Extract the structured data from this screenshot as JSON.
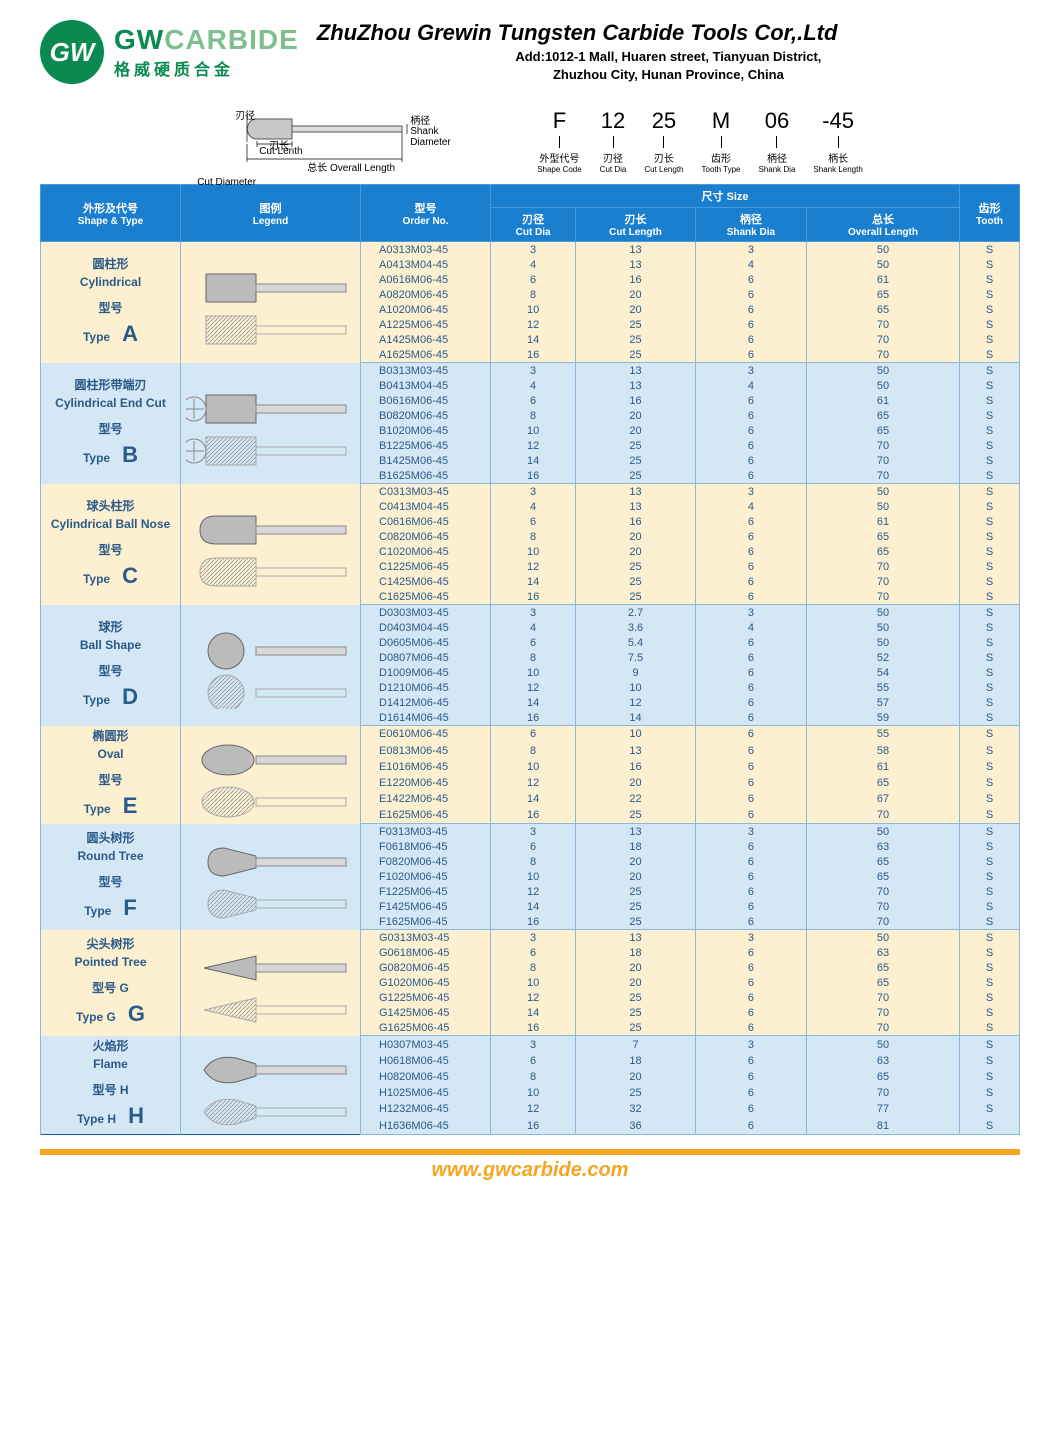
{
  "header": {
    "logo_text": "GW",
    "brand_en_1": "GW",
    "brand_en_2": "CARBIDE",
    "brand_cn": "格威硬质合金",
    "company_name": "ZhuZhou Grewin Tungsten Carbide Tools Cor,.Ltd",
    "addr1": "Add:1012-1 Mall, Huaren street, Tianyuan District,",
    "addr2": "Zhuzhou City, Hunan Province, China"
  },
  "diagram": {
    "cut_dia_cn": "刃径",
    "cut_dia_en": "Cut Diameter",
    "cut_len_cn": "刃长",
    "cut_len_en": "Cut Lenth",
    "overall_cn": "总长",
    "overall_en": "Overall Length",
    "shank_cn": "柄径",
    "shank_en": "Shank Diameter"
  },
  "code_spec": [
    {
      "big": "F",
      "cn": "外型代号",
      "en": "Shape Code"
    },
    {
      "big": "12",
      "cn": "刃径",
      "en": "Cut Dia"
    },
    {
      "big": "25",
      "cn": "刃长",
      "en": "Cut Length"
    },
    {
      "big": "M",
      "cn": "齿形",
      "en": "Tooth Type"
    },
    {
      "big": "06",
      "cn": "柄径",
      "en": "Shank Dia"
    },
    {
      "big": "-45",
      "cn": "柄长",
      "en": "Shank Length"
    }
  ],
  "table_headers": {
    "shape_cn": "外形及代号",
    "shape_en": "Shape & Type",
    "legend_cn": "图例",
    "legend_en": "Legend",
    "order_cn": "型号",
    "order_en": "Order No.",
    "size_cn": "尺寸",
    "size_en": "Size",
    "cutdia_cn": "刃径",
    "cutdia_en": "Cut Dia",
    "cutlen_cn": "刃长",
    "cutlen_en": "Cut Length",
    "shankdia_cn": "柄径",
    "shankdia_en": "Shank Dia",
    "overall_cn": "总长",
    "overall_en": "Overall Length",
    "tooth_cn": "齿形",
    "tooth_en": "Tooth"
  },
  "groups": [
    {
      "cn": "圆柱形",
      "en": "Cylindrical",
      "type_cn": "型号",
      "type_en": "Type",
      "letter": "A",
      "svg": "cyl",
      "rows": [
        {
          "o": "A0313M03-45",
          "d": "3",
          "l": "13",
          "s": "3",
          "ov": "50",
          "t": "S"
        },
        {
          "o": "A0413M04-45",
          "d": "4",
          "l": "13",
          "s": "4",
          "ov": "50",
          "t": "S"
        },
        {
          "o": "A0616M06-45",
          "d": "6",
          "l": "16",
          "s": "6",
          "ov": "61",
          "t": "S"
        },
        {
          "o": "A0820M06-45",
          "d": "8",
          "l": "20",
          "s": "6",
          "ov": "65",
          "t": "S"
        },
        {
          "o": "A1020M06-45",
          "d": "10",
          "l": "20",
          "s": "6",
          "ov": "65",
          "t": "S"
        },
        {
          "o": "A1225M06-45",
          "d": "12",
          "l": "25",
          "s": "6",
          "ov": "70",
          "t": "S"
        },
        {
          "o": "A1425M06-45",
          "d": "14",
          "l": "25",
          "s": "6",
          "ov": "70",
          "t": "S"
        },
        {
          "o": "A1625M06-45",
          "d": "16",
          "l": "25",
          "s": "6",
          "ov": "70",
          "t": "S"
        }
      ]
    },
    {
      "cn": "圆柱形带端刃",
      "en": "Cylindrical End Cut",
      "type_cn": "型号",
      "type_en": "Type",
      "letter": "B",
      "svg": "cylend",
      "rows": [
        {
          "o": "B0313M03-45",
          "d": "3",
          "l": "13",
          "s": "3",
          "ov": "50",
          "t": "S"
        },
        {
          "o": "B0413M04-45",
          "d": "4",
          "l": "13",
          "s": "4",
          "ov": "50",
          "t": "S"
        },
        {
          "o": "B0616M06-45",
          "d": "6",
          "l": "16",
          "s": "6",
          "ov": "61",
          "t": "S"
        },
        {
          "o": "B0820M06-45",
          "d": "8",
          "l": "20",
          "s": "6",
          "ov": "65",
          "t": "S"
        },
        {
          "o": "B1020M06-45",
          "d": "10",
          "l": "20",
          "s": "6",
          "ov": "65",
          "t": "S"
        },
        {
          "o": "B1225M06-45",
          "d": "12",
          "l": "25",
          "s": "6",
          "ov": "70",
          "t": "S"
        },
        {
          "o": "B1425M06-45",
          "d": "14",
          "l": "25",
          "s": "6",
          "ov": "70",
          "t": "S"
        },
        {
          "o": "B1625M06-45",
          "d": "16",
          "l": "25",
          "s": "6",
          "ov": "70",
          "t": "S"
        }
      ]
    },
    {
      "cn": "球头柱形",
      "en": "Cylindrical Ball Nose",
      "type_cn": "型号",
      "type_en": "Type",
      "letter": "C",
      "svg": "ballnose",
      "rows": [
        {
          "o": "C0313M03-45",
          "d": "3",
          "l": "13",
          "s": "3",
          "ov": "50",
          "t": "S"
        },
        {
          "o": "C0413M04-45",
          "d": "4",
          "l": "13",
          "s": "4",
          "ov": "50",
          "t": "S"
        },
        {
          "o": "C0616M06-45",
          "d": "6",
          "l": "16",
          "s": "6",
          "ov": "61",
          "t": "S"
        },
        {
          "o": "C0820M06-45",
          "d": "8",
          "l": "20",
          "s": "6",
          "ov": "65",
          "t": "S"
        },
        {
          "o": "C1020M06-45",
          "d": "10",
          "l": "20",
          "s": "6",
          "ov": "65",
          "t": "S"
        },
        {
          "o": "C1225M06-45",
          "d": "12",
          "l": "25",
          "s": "6",
          "ov": "70",
          "t": "S"
        },
        {
          "o": "C1425M06-45",
          "d": "14",
          "l": "25",
          "s": "6",
          "ov": "70",
          "t": "S"
        },
        {
          "o": "C1625M06-45",
          "d": "16",
          "l": "25",
          "s": "6",
          "ov": "70",
          "t": "S"
        }
      ]
    },
    {
      "cn": "球形",
      "en": "Ball Shape",
      "type_cn": "型号",
      "type_en": "Type",
      "letter": "D",
      "svg": "ball",
      "rows": [
        {
          "o": "D0303M03-45",
          "d": "3",
          "l": "2.7",
          "s": "3",
          "ov": "50",
          "t": "S"
        },
        {
          "o": "D0403M04-45",
          "d": "4",
          "l": "3.6",
          "s": "4",
          "ov": "50",
          "t": "S"
        },
        {
          "o": "D0605M06-45",
          "d": "6",
          "l": "5.4",
          "s": "6",
          "ov": "50",
          "t": "S"
        },
        {
          "o": "D0807M06-45",
          "d": "8",
          "l": "7.5",
          "s": "6",
          "ov": "52",
          "t": "S"
        },
        {
          "o": "D1009M06-45",
          "d": "10",
          "l": "9",
          "s": "6",
          "ov": "54",
          "t": "S"
        },
        {
          "o": "D1210M06-45",
          "d": "12",
          "l": "10",
          "s": "6",
          "ov": "55",
          "t": "S"
        },
        {
          "o": "D1412M06-45",
          "d": "14",
          "l": "12",
          "s": "6",
          "ov": "57",
          "t": "S"
        },
        {
          "o": "D1614M06-45",
          "d": "16",
          "l": "14",
          "s": "6",
          "ov": "59",
          "t": "S"
        }
      ]
    },
    {
      "cn": "椭圆形",
      "en": "Oval",
      "type_cn": "型号",
      "type_en": "Type",
      "letter": "E",
      "svg": "oval",
      "rows": [
        {
          "o": "E0610M06-45",
          "d": "6",
          "l": "10",
          "s": "6",
          "ov": "55",
          "t": "S"
        },
        {
          "o": "E0813M06-45",
          "d": "8",
          "l": "13",
          "s": "6",
          "ov": "58",
          "t": "S"
        },
        {
          "o": "E1016M06-45",
          "d": "10",
          "l": "16",
          "s": "6",
          "ov": "61",
          "t": "S"
        },
        {
          "o": "E1220M06-45",
          "d": "12",
          "l": "20",
          "s": "6",
          "ov": "65",
          "t": "S"
        },
        {
          "o": "E1422M06-45",
          "d": "14",
          "l": "22",
          "s": "6",
          "ov": "67",
          "t": "S"
        },
        {
          "o": "E1625M06-45",
          "d": "16",
          "l": "25",
          "s": "6",
          "ov": "70",
          "t": "S"
        }
      ]
    },
    {
      "cn": "圆头树形",
      "en": "Round Tree",
      "type_cn": "型号",
      "type_en": "Type",
      "letter": "F",
      "svg": "rtree",
      "rows": [
        {
          "o": "F0313M03-45",
          "d": "3",
          "l": "13",
          "s": "3",
          "ov": "50",
          "t": "S"
        },
        {
          "o": "F0618M06-45",
          "d": "6",
          "l": "18",
          "s": "6",
          "ov": "63",
          "t": "S"
        },
        {
          "o": "F0820M06-45",
          "d": "8",
          "l": "20",
          "s": "6",
          "ov": "65",
          "t": "S"
        },
        {
          "o": "F1020M06-45",
          "d": "10",
          "l": "20",
          "s": "6",
          "ov": "65",
          "t": "S"
        },
        {
          "o": "F1225M06-45",
          "d": "12",
          "l": "25",
          "s": "6",
          "ov": "70",
          "t": "S"
        },
        {
          "o": "F1425M06-45",
          "d": "14",
          "l": "25",
          "s": "6",
          "ov": "70",
          "t": "S"
        },
        {
          "o": "F1625M06-45",
          "d": "16",
          "l": "25",
          "s": "6",
          "ov": "70",
          "t": "S"
        }
      ]
    },
    {
      "cn": "尖头树形",
      "en": "Pointed Tree",
      "type_cn": "型号 G",
      "type_en": "Type G",
      "letter": "G",
      "svg": "ptree",
      "rows": [
        {
          "o": "G0313M03-45",
          "d": "3",
          "l": "13",
          "s": "3",
          "ov": "50",
          "t": "S"
        },
        {
          "o": "G0618M06-45",
          "d": "6",
          "l": "18",
          "s": "6",
          "ov": "63",
          "t": "S"
        },
        {
          "o": "G0820M06-45",
          "d": "8",
          "l": "20",
          "s": "6",
          "ov": "65",
          "t": "S"
        },
        {
          "o": "G1020M06-45",
          "d": "10",
          "l": "20",
          "s": "6",
          "ov": "65",
          "t": "S"
        },
        {
          "o": "G1225M06-45",
          "d": "12",
          "l": "25",
          "s": "6",
          "ov": "70",
          "t": "S"
        },
        {
          "o": "G1425M06-45",
          "d": "14",
          "l": "25",
          "s": "6",
          "ov": "70",
          "t": "S"
        },
        {
          "o": "G1625M06-45",
          "d": "16",
          "l": "25",
          "s": "6",
          "ov": "70",
          "t": "S"
        }
      ]
    },
    {
      "cn": "火焰形",
      "en": "Flame",
      "type_cn": "型号 H",
      "type_en": "Type H",
      "letter": "H",
      "svg": "flame",
      "rows": [
        {
          "o": "H0307M03-45",
          "d": "3",
          "l": "7",
          "s": "3",
          "ov": "50",
          "t": "S"
        },
        {
          "o": "H0618M06-45",
          "d": "6",
          "l": "18",
          "s": "6",
          "ov": "63",
          "t": "S"
        },
        {
          "o": "H0820M06-45",
          "d": "8",
          "l": "20",
          "s": "6",
          "ov": "65",
          "t": "S"
        },
        {
          "o": "H1025M06-45",
          "d": "10",
          "l": "25",
          "s": "6",
          "ov": "70",
          "t": "S"
        },
        {
          "o": "H1232M06-45",
          "d": "12",
          "l": "32",
          "s": "6",
          "ov": "77",
          "t": "S"
        },
        {
          "o": "H1636M06-45",
          "d": "16",
          "l": "36",
          "s": "6",
          "ov": "81",
          "t": "S"
        }
      ]
    }
  ],
  "footer": {
    "url": "www.gwcarbide.com"
  }
}
